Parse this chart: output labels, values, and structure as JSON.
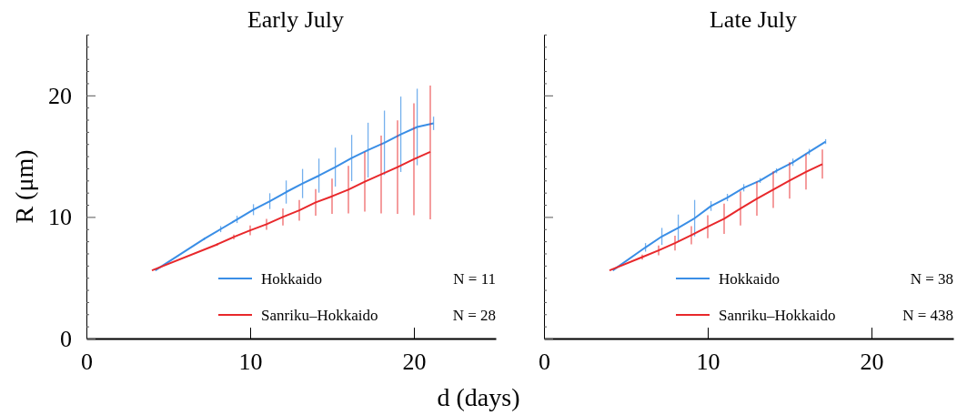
{
  "chart_data": [
    {
      "type": "line",
      "title": "Early July",
      "xlabel": "d (days)",
      "ylabel": "R (μm)",
      "xlim": [
        0,
        25
      ],
      "xticks": [
        0,
        10,
        20
      ],
      "ylim": [
        0,
        25
      ],
      "yticks": [
        0,
        {
          "value": 1,
          "label": null
        },
        {
          "value": 2,
          "label": null
        },
        {
          "value": 3,
          "label": null
        },
        {
          "value": 4,
          "label": null
        },
        {
          "value": 5,
          "label": null
        },
        {
          "value": 6,
          "label": null
        },
        {
          "value": 7,
          "label": null
        },
        {
          "value": 8,
          "label": null
        },
        {
          "value": 9,
          "label": null
        },
        10,
        {
          "value": 11,
          "label": null
        },
        {
          "value": 12,
          "label": null
        },
        {
          "value": 13,
          "label": null
        },
        {
          "value": 14,
          "label": null
        },
        {
          "value": 15,
          "label": null
        },
        {
          "value": 16,
          "label": null
        },
        {
          "value": 17,
          "label": null
        },
        {
          "value": 18,
          "label": null
        },
        {
          "value": 19,
          "label": null
        },
        20,
        {
          "value": 21,
          "label": null
        },
        {
          "value": 22,
          "label": null
        },
        {
          "value": 23,
          "label": null
        },
        {
          "value": 24,
          "label": null
        },
        {
          "value": 25,
          "label": null
        }
      ],
      "legend": "bottom right",
      "grid": false,
      "marker": "none",
      "line_style": "solid",
      "annotations": [
        "N = 11",
        "N = 28"
      ],
      "series": [
        {
          "name": "Hokkaido",
          "color": "#3a8ee6",
          "x": [
            4.2,
            7.2,
            8.2,
            9.2,
            10.2,
            11.2,
            12.2,
            13.2,
            14.2,
            15.2,
            16.2,
            17.2,
            18.2,
            19.2,
            20.2,
            21.2
          ],
          "values": [
            5.6,
            8.2,
            9.0,
            9.8,
            10.6,
            11.3,
            12.05,
            12.75,
            13.4,
            14.1,
            14.85,
            15.5,
            16.1,
            16.8,
            17.4,
            17.7
          ],
          "errors": [
            null,
            0.1,
            0.25,
            0.3,
            0.45,
            0.65,
            0.95,
            1.2,
            1.4,
            1.6,
            1.9,
            2.25,
            2.65,
            3.1,
            3.15,
            0.55
          ]
        },
        {
          "name": "Sanriku–Hokkaido",
          "color": "#e8282b",
          "x": [
            4,
            8,
            9,
            10,
            11,
            12,
            13,
            14,
            15,
            16,
            17,
            18,
            19,
            20,
            21
          ],
          "values": [
            5.6,
            7.75,
            8.35,
            8.9,
            9.4,
            10.0,
            10.55,
            11.2,
            11.7,
            12.25,
            12.9,
            13.5,
            14.1,
            14.75,
            15.35
          ],
          "errors": [
            null,
            0.1,
            0.2,
            0.4,
            0.45,
            0.7,
            0.85,
            1.1,
            1.45,
            1.95,
            2.45,
            3.2,
            3.85,
            4.6,
            [
              9.8,
              20.8
            ]
          ]
        }
      ]
    },
    {
      "type": "line",
      "title": "Late July",
      "xlim": [
        0,
        25
      ],
      "xticks": [
        0,
        10,
        20
      ],
      "ylim": [
        0,
        25
      ],
      "yticks": [
        0,
        {
          "value": 1,
          "label": null
        },
        {
          "value": 2,
          "label": null
        },
        {
          "value": 3,
          "label": null
        },
        {
          "value": 4,
          "label": null
        },
        {
          "value": 5,
          "label": null
        },
        {
          "value": 6,
          "label": null
        },
        {
          "value": 7,
          "label": null
        },
        {
          "value": 8,
          "label": null
        },
        {
          "value": 9,
          "label": null
        },
        10,
        {
          "value": 11,
          "label": null
        },
        {
          "value": 12,
          "label": null
        },
        {
          "value": 13,
          "label": null
        },
        {
          "value": 14,
          "label": null
        },
        {
          "value": 15,
          "label": null
        },
        {
          "value": 16,
          "label": null
        },
        {
          "value": 17,
          "label": null
        },
        {
          "value": 18,
          "label": null
        },
        {
          "value": 19,
          "label": null
        },
        20,
        {
          "value": 21,
          "label": null
        },
        {
          "value": 22,
          "label": null
        },
        {
          "value": 23,
          "label": null
        },
        {
          "value": 24,
          "label": null
        },
        {
          "value": 25,
          "label": null
        }
      ],
      "tick_labels": "x",
      "legend": "bottom right",
      "grid": false,
      "marker": "none",
      "line_style": "solid",
      "annotations": [
        "N = 38",
        "N = 438"
      ],
      "series": [
        {
          "name": "Hokkaido",
          "color": "#3a8ee6",
          "x": [
            4.2,
            6.2,
            7.2,
            8.2,
            9.2,
            10.2,
            11.2,
            12.2,
            13.2,
            14.2,
            15.2,
            16.2,
            17.2
          ],
          "values": [
            5.6,
            7.5,
            8.4,
            9.1,
            9.9,
            10.9,
            11.6,
            12.4,
            13.0,
            13.8,
            14.5,
            15.35,
            16.2
          ],
          "errors": [
            null,
            0.35,
            0.7,
            1.1,
            1.5,
            0.4,
            0.3,
            0.3,
            0.2,
            0.2,
            0.3,
            0.25,
            0.2
          ]
        },
        {
          "name": "Sanriku–Hokkaido",
          "color": "#e8282b",
          "x": [
            4,
            6,
            7,
            8,
            9,
            10,
            11,
            12,
            13,
            14,
            15,
            16,
            17
          ],
          "values": [
            5.6,
            6.7,
            7.25,
            7.85,
            8.5,
            9.2,
            9.85,
            10.7,
            11.5,
            12.25,
            13.0,
            13.7,
            14.35
          ],
          "errors": [
            null,
            0.2,
            0.4,
            0.6,
            0.75,
            0.95,
            1.25,
            1.4,
            1.4,
            1.5,
            1.5,
            1.45,
            1.2
          ]
        }
      ]
    }
  ]
}
